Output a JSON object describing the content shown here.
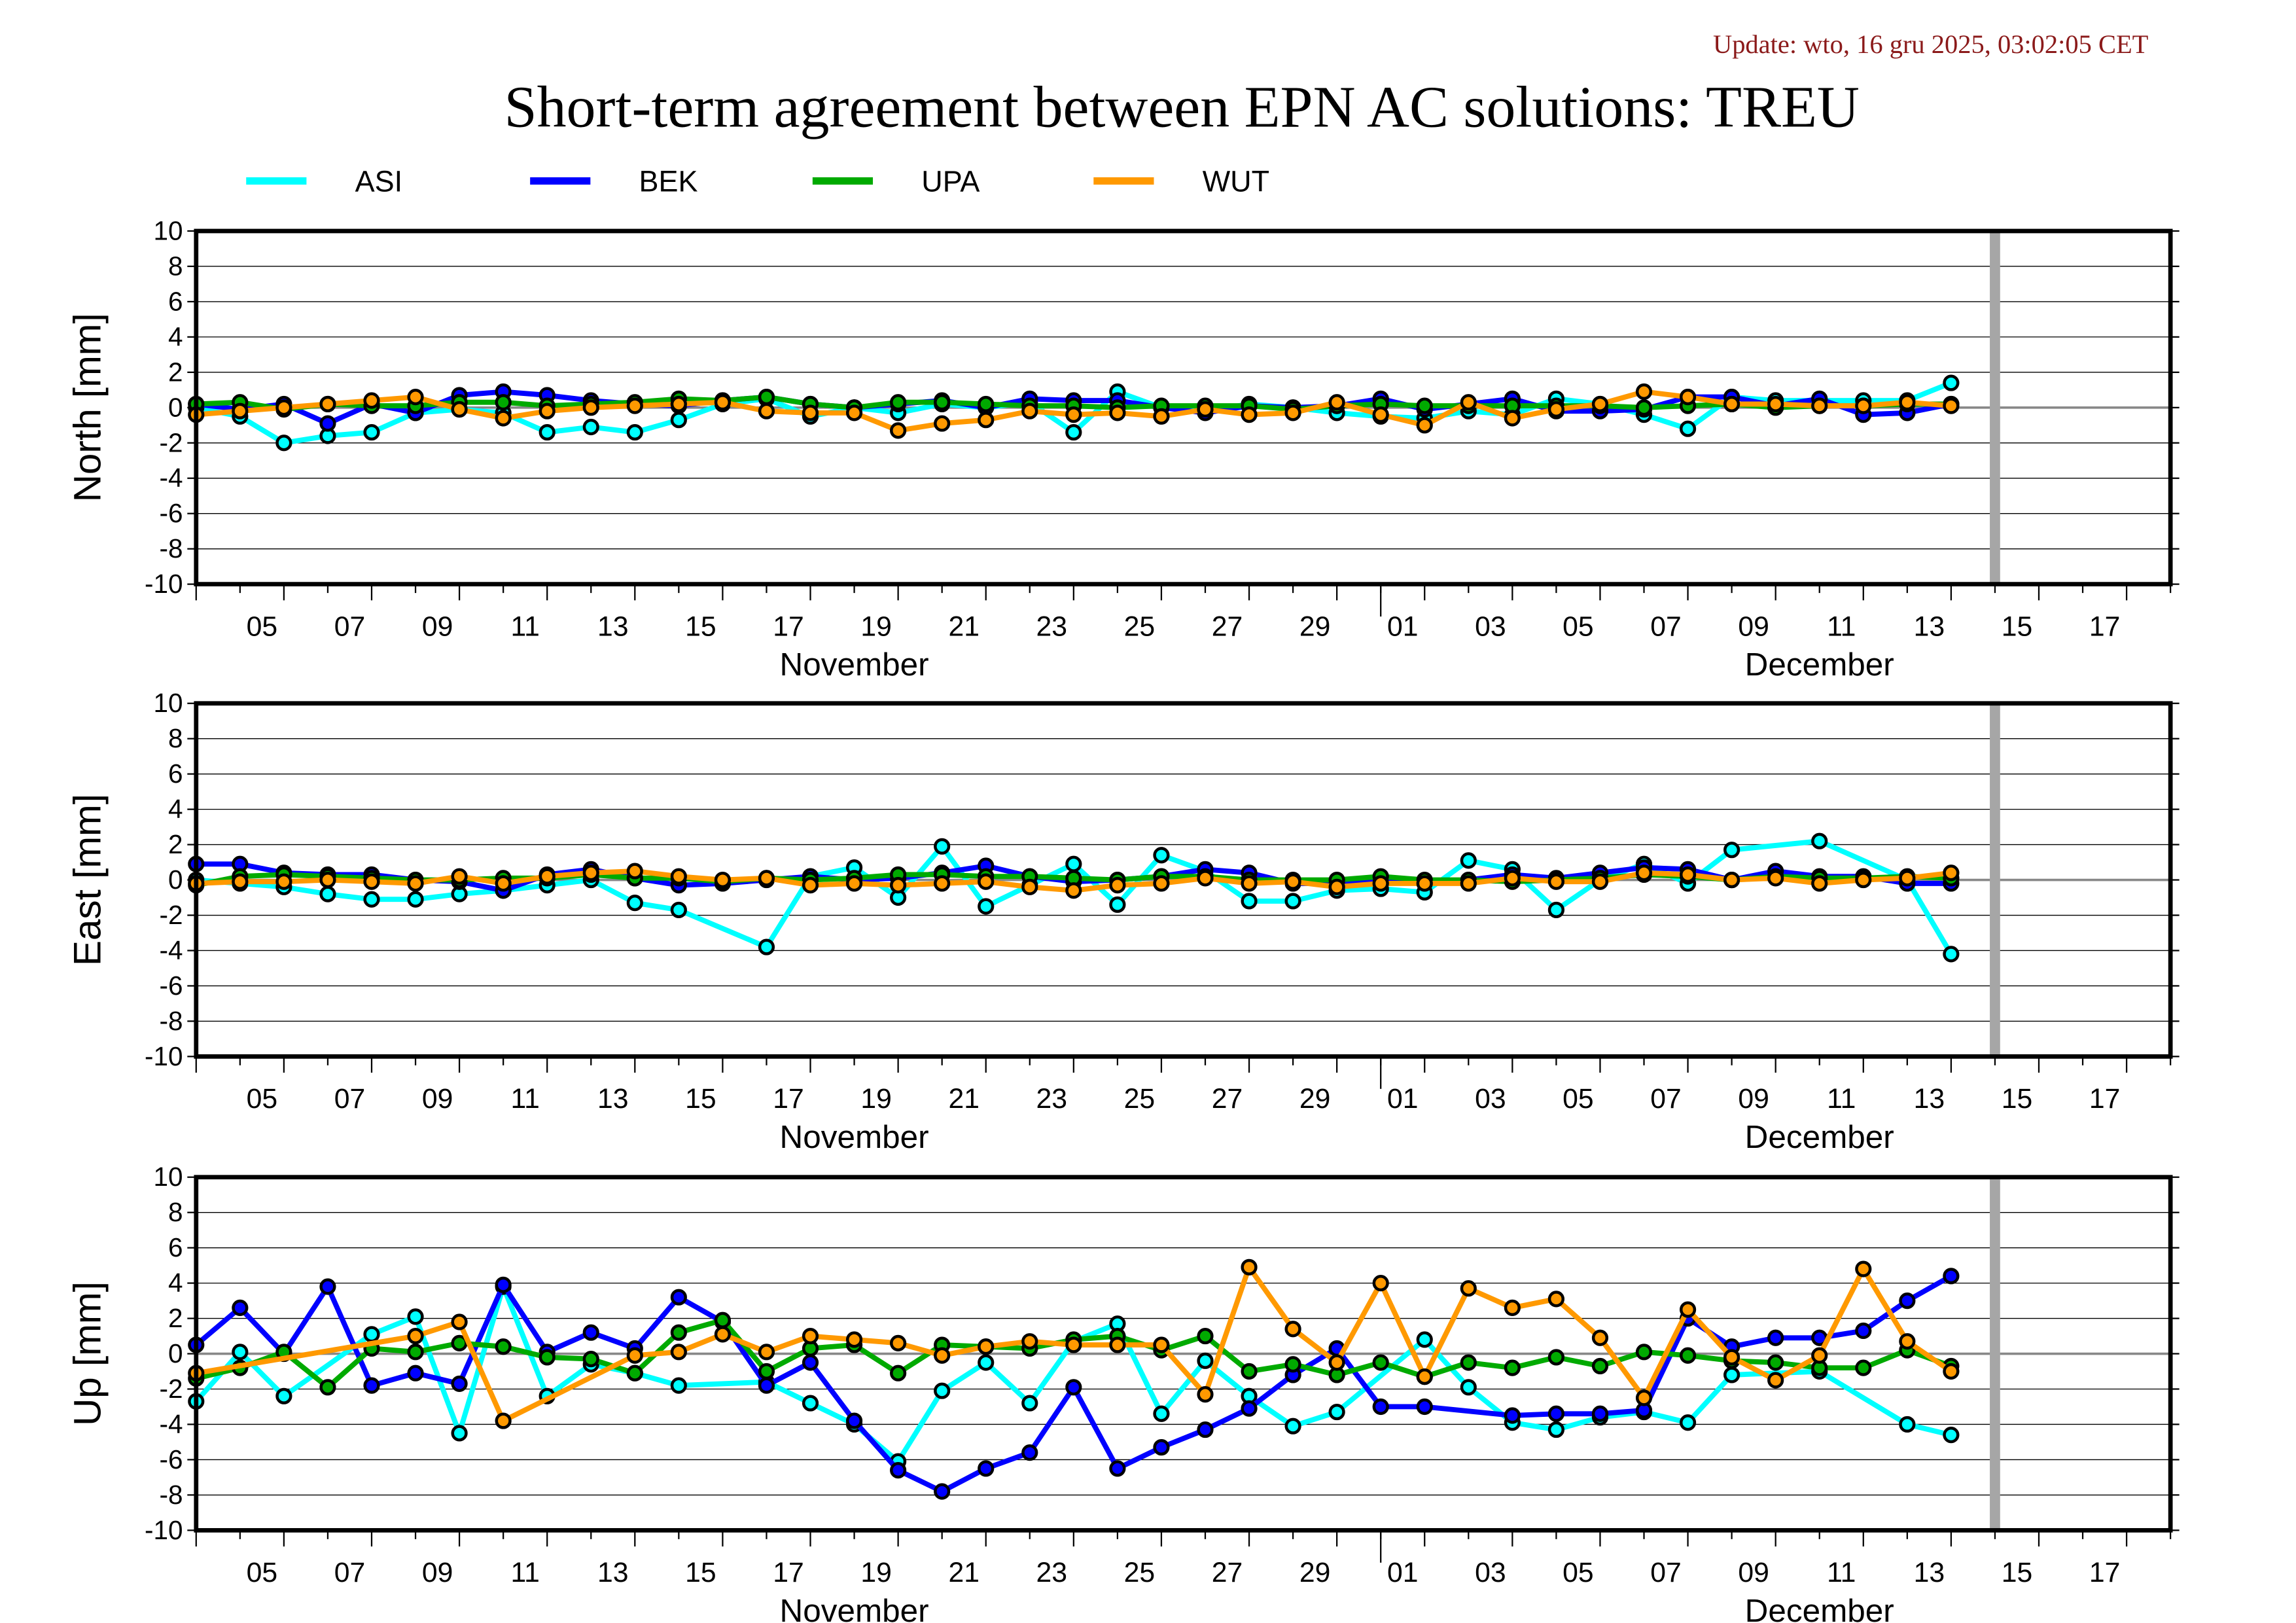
{
  "update_text": "Update: wto, 16 gru 2025, 03:02:05 CET",
  "title": "Short-term agreement between EPN AC solutions: TREU",
  "legend": [
    {
      "name": "ASI",
      "color": "#00ffff"
    },
    {
      "name": "BEK",
      "color": "#0000ff"
    },
    {
      "name": "UPA",
      "color": "#00aa00"
    },
    {
      "name": "WUT",
      "color": "#ff9900"
    }
  ],
  "chart_data": {
    "type": "line",
    "legend_placement": "top",
    "grid": true,
    "xlim": [
      "2025-11-04",
      "2025-12-19"
    ],
    "reference_marker_date": "2025-12-15",
    "x_tick_labels": [
      {
        "date": "2025-11-05",
        "label": "05"
      },
      {
        "date": "2025-11-07",
        "label": "07"
      },
      {
        "date": "2025-11-09",
        "label": "09"
      },
      {
        "date": "2025-11-11",
        "label": "11"
      },
      {
        "date": "2025-11-13",
        "label": "13"
      },
      {
        "date": "2025-11-15",
        "label": "15"
      },
      {
        "date": "2025-11-17",
        "label": "17"
      },
      {
        "date": "2025-11-19",
        "label": "19"
      },
      {
        "date": "2025-11-21",
        "label": "21"
      },
      {
        "date": "2025-11-23",
        "label": "23"
      },
      {
        "date": "2025-11-25",
        "label": "25"
      },
      {
        "date": "2025-11-27",
        "label": "27"
      },
      {
        "date": "2025-11-29",
        "label": "29"
      },
      {
        "date": "2025-12-01",
        "label": "01"
      },
      {
        "date": "2025-12-03",
        "label": "03"
      },
      {
        "date": "2025-12-05",
        "label": "05"
      },
      {
        "date": "2025-12-07",
        "label": "07"
      },
      {
        "date": "2025-12-09",
        "label": "09"
      },
      {
        "date": "2025-12-11",
        "label": "11"
      },
      {
        "date": "2025-12-13",
        "label": "13"
      },
      {
        "date": "2025-12-15",
        "label": "15"
      },
      {
        "date": "2025-12-17",
        "label": "17"
      }
    ],
    "month_labels": [
      {
        "date": "2025-11-19",
        "label": "November"
      },
      {
        "date": "2025-12-11",
        "label": "December"
      }
    ],
    "y_ticks": [
      10,
      8,
      6,
      4,
      2,
      0,
      -2,
      -4,
      -6,
      -8,
      -10
    ],
    "ylim": [
      -10,
      10
    ],
    "x_start": "2025-11-04",
    "panels": [
      {
        "ylabel": "North [mm]",
        "series": [
          {
            "name": "ASI",
            "values": [
              0,
              -0.5,
              -2,
              -1.6,
              -1.4,
              -0.3,
              -0.1,
              -0.3,
              -1.4,
              -1.1,
              -1.4,
              -0.7,
              0.2,
              0.5,
              -0.5,
              0,
              -0.3,
              0.2,
              0,
              0.3,
              -1.4,
              0.9,
              0,
              -0.2,
              0.2,
              0,
              -0.3,
              -0.5,
              -0.6,
              -0.2,
              -0.4,
              0.5,
              0.2,
              -0.4,
              -1.2,
              0.6,
              0.4,
              0.4,
              0.4,
              0.4,
              1.4
            ]
          },
          {
            "name": "BEK",
            "values": [
              0.2,
              -0.1,
              0.2,
              -0.9,
              0.2,
              -0.3,
              0.7,
              0.9,
              0.7,
              0.4,
              0.2,
              0.1,
              0.4,
              0.6,
              0.2,
              0,
              0.2,
              0.4,
              0,
              0.5,
              0.4,
              0.4,
              0,
              -0.3,
              0.1,
              0,
              0.1,
              0.5,
              -0.1,
              0.2,
              0.5,
              -0.2,
              -0.2,
              -0.1,
              0.6,
              0.6,
              0.1,
              0.5,
              -0.4,
              -0.3,
              0.2
            ]
          },
          {
            "name": "UPA",
            "values": [
              0.2,
              0.3,
              -0.1,
              0.2,
              0.1,
              0.1,
              0.3,
              0.3,
              0.1,
              0.2,
              0.3,
              0.5,
              0.4,
              0.6,
              0.2,
              0,
              0.3,
              0.3,
              0.2,
              0.1,
              0.1,
              0,
              0.1,
              0.1,
              0.1,
              -0.1,
              0.1,
              0.2,
              0.1,
              0.1,
              0.1,
              0.1,
              0.1,
              0,
              0.1,
              0.2,
              0,
              0.1,
              0.1,
              0.2,
              0.2
            ]
          },
          {
            "name": "WUT",
            "values": [
              -0.4,
              -0.2,
              0,
              0.2,
              0.4,
              0.6,
              -0.1,
              -0.6,
              -0.2,
              0,
              0.1,
              0.2,
              0.3,
              -0.2,
              -0.3,
              -0.3,
              -1.3,
              -0.9,
              -0.7,
              -0.2,
              -0.4,
              -0.3,
              -0.5,
              -0.1,
              -0.4,
              -0.3,
              0.3,
              -0.4,
              -1.0,
              0.3,
              -0.6,
              -0.1,
              0.2,
              0.9,
              0.6,
              0.2,
              0.2,
              0.1,
              0.1,
              0.3,
              0.1
            ]
          }
        ]
      },
      {
        "ylabel": "East [mm]",
        "series": [
          {
            "name": "ASI",
            "values": [
              0,
              -0.2,
              -0.4,
              -0.8,
              -1.1,
              -1.1,
              -0.8,
              -0.6,
              -0.3,
              0,
              -1.3,
              -1.7,
              null,
              -3.8,
              0.2,
              0.7,
              -1.0,
              1.9,
              -1.5,
              -0.3,
              0.9,
              -1.4,
              1.4,
              0.5,
              -1.2,
              -1.2,
              -0.6,
              -0.5,
              -0.7,
              1.1,
              0.6,
              -1.7,
              0,
              0.9,
              -0.2,
              1.7,
              null,
              2.2,
              null,
              0,
              -4.2
            ]
          },
          {
            "name": "BEK",
            "values": [
              0.9,
              0.9,
              0.4,
              0.3,
              0.3,
              0,
              -0.1,
              -0.6,
              0.3,
              0.6,
              0.1,
              -0.3,
              -0.2,
              0,
              0.2,
              0,
              0.1,
              0.4,
              0.8,
              0.2,
              -0.1,
              0,
              0.2,
              0.6,
              0.4,
              -0.2,
              -0.2,
              0.1,
              -0.1,
              0,
              0.3,
              0.1,
              0.4,
              0.7,
              0.6,
              0,
              0.5,
              0.2,
              0.2,
              -0.2,
              -0.2
            ]
          },
          {
            "name": "UPA",
            "values": [
              -0.3,
              0.2,
              0.3,
              0.2,
              0.1,
              0,
              0,
              0.1,
              0.1,
              0.3,
              0.1,
              0.1,
              -0.1,
              0.1,
              0,
              0.1,
              0.3,
              0.3,
              0.2,
              0.2,
              0.1,
              0,
              0.2,
              0.2,
              0,
              0,
              0,
              0.2,
              0,
              0,
              -0.1,
              0,
              0.1,
              0.3,
              0.2,
              0,
              0.2,
              0.1,
              0.1,
              0.2,
              0.1
            ]
          },
          {
            "name": "WUT",
            "values": [
              -0.2,
              -0.1,
              -0.1,
              0,
              -0.1,
              -0.2,
              0.2,
              -0.2,
              0.2,
              0.4,
              0.5,
              0.2,
              0,
              0.1,
              -0.3,
              -0.2,
              -0.3,
              -0.2,
              -0.1,
              -0.4,
              -0.6,
              -0.3,
              -0.2,
              0.1,
              -0.2,
              -0.1,
              -0.4,
              -0.2,
              -0.2,
              -0.2,
              0.1,
              -0.1,
              -0.1,
              0.4,
              0.3,
              0,
              0.1,
              -0.2,
              0,
              0.1,
              0.4
            ]
          }
        ]
      },
      {
        "ylabel": "Up [mm]",
        "series": [
          {
            "name": "ASI",
            "values": [
              -2.7,
              0.1,
              -2.4,
              null,
              1.1,
              2.1,
              -4.5,
              3.8,
              -2.4,
              -0.6,
              -1.1,
              -1.8,
              null,
              -1.6,
              -2.8,
              -4.0,
              -6.1,
              -2.1,
              -0.5,
              -2.8,
              0.7,
              1.7,
              -3.4,
              -0.4,
              -2.4,
              -4.1,
              -3.3,
              null,
              0.8,
              -1.9,
              -3.9,
              -4.3,
              -3.6,
              -3.3,
              -3.9,
              -1.2,
              null,
              -1.0,
              null,
              -4.0,
              -4.6
            ]
          },
          {
            "name": "BEK",
            "values": [
              0.5,
              2.6,
              0,
              3.8,
              -1.8,
              -1.1,
              -1.7,
              3.9,
              0.1,
              1.2,
              0.3,
              3.2,
              1.8,
              -1.8,
              -0.5,
              -3.8,
              -6.6,
              -7.8,
              -6.5,
              -5.6,
              -1.9,
              -6.5,
              -5.3,
              -4.3,
              -3.1,
              -1.2,
              0.3,
              -3.0,
              -3.0,
              null,
              -3.5,
              -3.4,
              -3.4,
              -3.2,
              2.0,
              0.4,
              0.9,
              0.9,
              1.3,
              3.0,
              4.4
            ]
          },
          {
            "name": "UPA",
            "values": [
              -1.4,
              -0.8,
              0.1,
              -1.9,
              0.3,
              0.1,
              0.6,
              0.4,
              -0.2,
              -0.3,
              -1.1,
              1.2,
              1.9,
              -1.0,
              0.3,
              0.5,
              -1.1,
              0.5,
              0.4,
              0.3,
              0.8,
              1.0,
              0.2,
              1.0,
              -1.0,
              -0.6,
              -1.2,
              -0.5,
              -1.3,
              -0.5,
              -0.8,
              -0.2,
              -0.7,
              0.1,
              -0.1,
              -0.4,
              -0.5,
              -0.8,
              -0.8,
              0.2,
              -0.7
            ]
          },
          {
            "name": "WUT",
            "values": [
              -1.1,
              null,
              null,
              null,
              null,
              1.0,
              1.8,
              -3.8,
              null,
              null,
              -0.1,
              0.1,
              1.1,
              0.1,
              1.0,
              0.8,
              0.6,
              -0.1,
              0.4,
              0.7,
              0.5,
              0.5,
              0.5,
              -2.3,
              4.9,
              1.4,
              -0.5,
              4.0,
              -1.3,
              3.7,
              2.6,
              3.1,
              0.9,
              -2.5,
              2.5,
              -0.2,
              -1.5,
              -0.1,
              4.8,
              0.7,
              -1.0
            ]
          }
        ]
      }
    ]
  }
}
